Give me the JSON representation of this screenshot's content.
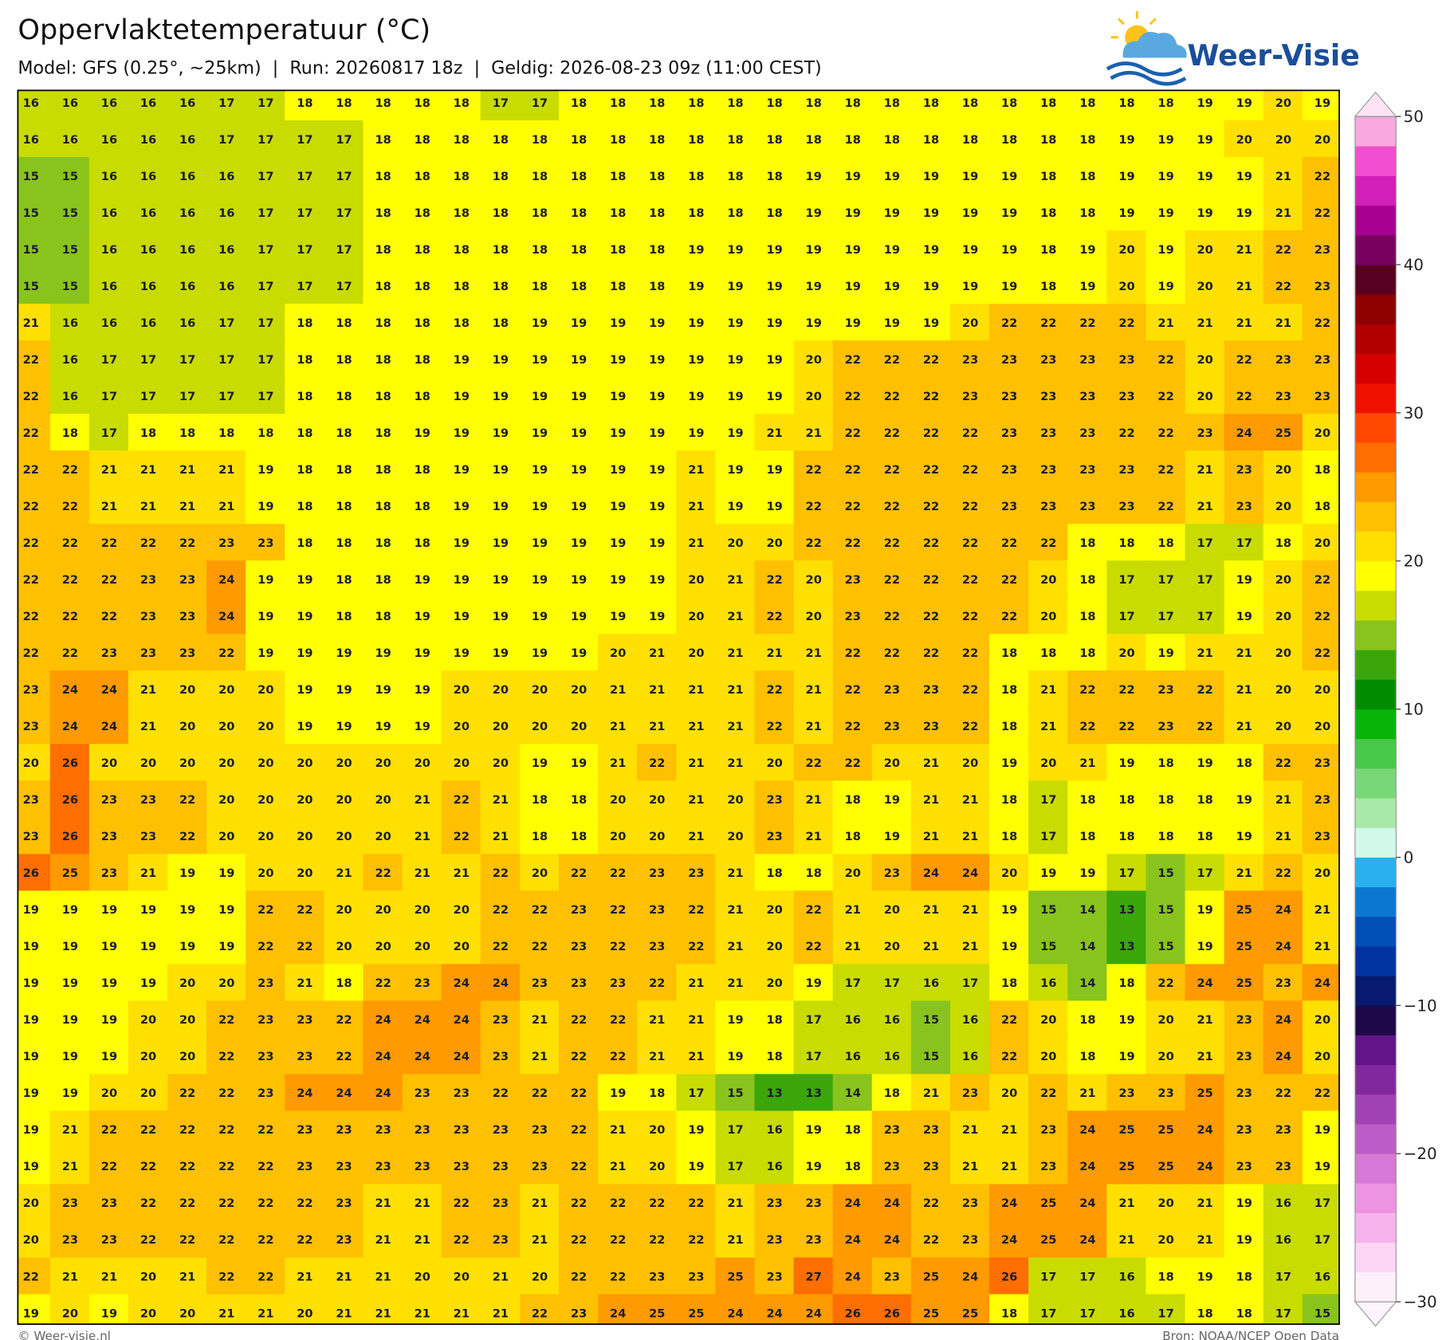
{
  "header": {
    "title": "Oppervlaktetemperatuur (°C)",
    "subtitle": "Model: GFS (0.25°, ~25km)  |  Run: 20260817 18z  |  Geldig: 2026-08-23 09z (11:00 CEST)"
  },
  "logo": {
    "text": "Weer-Visie"
  },
  "map": {
    "rows": [
      [
        16,
        16,
        16,
        16,
        16,
        17,
        17,
        18,
        18,
        18,
        18,
        18,
        17,
        17,
        18,
        18,
        18,
        18,
        18,
        18,
        18,
        18,
        18,
        18,
        18,
        18,
        18,
        18,
        18,
        18,
        19,
        19,
        20,
        19
      ],
      [
        16,
        16,
        16,
        16,
        16,
        17,
        17,
        17,
        17,
        18,
        18,
        18,
        18,
        18,
        18,
        18,
        18,
        18,
        18,
        18,
        18,
        18,
        18,
        18,
        18,
        18,
        18,
        18,
        19,
        19,
        19,
        20,
        20,
        20
      ],
      [
        15,
        15,
        16,
        16,
        16,
        16,
        17,
        17,
        17,
        18,
        18,
        18,
        18,
        18,
        18,
        18,
        18,
        18,
        18,
        18,
        19,
        19,
        19,
        19,
        19,
        19,
        18,
        18,
        19,
        19,
        19,
        19,
        21,
        22
      ],
      [
        15,
        15,
        16,
        16,
        16,
        16,
        17,
        17,
        17,
        18,
        18,
        18,
        18,
        18,
        18,
        18,
        18,
        18,
        18,
        18,
        19,
        19,
        19,
        19,
        19,
        19,
        18,
        18,
        19,
        19,
        19,
        19,
        21,
        22
      ],
      [
        15,
        15,
        16,
        16,
        16,
        16,
        17,
        17,
        17,
        18,
        18,
        18,
        18,
        18,
        18,
        18,
        18,
        19,
        19,
        19,
        19,
        19,
        19,
        19,
        19,
        19,
        18,
        19,
        20,
        19,
        20,
        21,
        22,
        23
      ],
      [
        15,
        15,
        16,
        16,
        16,
        16,
        17,
        17,
        17,
        18,
        18,
        18,
        18,
        18,
        18,
        18,
        18,
        19,
        19,
        19,
        19,
        19,
        19,
        19,
        19,
        19,
        18,
        19,
        20,
        19,
        20,
        21,
        22,
        23
      ],
      [
        21,
        16,
        16,
        16,
        16,
        17,
        17,
        18,
        18,
        18,
        18,
        18,
        18,
        19,
        19,
        19,
        19,
        19,
        19,
        19,
        19,
        19,
        19,
        19,
        20,
        22,
        22,
        22,
        22,
        21,
        21,
        21,
        21,
        22
      ],
      [
        22,
        16,
        17,
        17,
        17,
        17,
        17,
        18,
        18,
        18,
        18,
        19,
        19,
        19,
        19,
        19,
        19,
        19,
        19,
        19,
        20,
        22,
        22,
        22,
        23,
        23,
        23,
        23,
        23,
        22,
        20,
        22,
        23,
        23
      ],
      [
        22,
        16,
        17,
        17,
        17,
        17,
        17,
        18,
        18,
        18,
        18,
        19,
        19,
        19,
        19,
        19,
        19,
        19,
        19,
        19,
        20,
        22,
        22,
        22,
        23,
        23,
        23,
        23,
        23,
        22,
        20,
        22,
        23,
        23
      ],
      [
        22,
        18,
        17,
        18,
        18,
        18,
        18,
        18,
        18,
        18,
        19,
        19,
        19,
        19,
        19,
        19,
        19,
        19,
        19,
        21,
        21,
        22,
        22,
        22,
        22,
        23,
        23,
        23,
        22,
        22,
        23,
        24,
        25,
        20
      ],
      [
        22,
        22,
        21,
        21,
        21,
        21,
        19,
        18,
        18,
        18,
        18,
        19,
        19,
        19,
        19,
        19,
        19,
        21,
        19,
        19,
        22,
        22,
        22,
        22,
        22,
        23,
        23,
        23,
        23,
        22,
        21,
        23,
        20,
        18
      ],
      [
        22,
        22,
        21,
        21,
        21,
        21,
        19,
        18,
        18,
        18,
        18,
        19,
        19,
        19,
        19,
        19,
        19,
        21,
        19,
        19,
        22,
        22,
        22,
        22,
        22,
        23,
        23,
        23,
        23,
        22,
        21,
        23,
        20,
        18
      ],
      [
        22,
        22,
        22,
        22,
        22,
        23,
        23,
        18,
        18,
        18,
        18,
        19,
        19,
        19,
        19,
        19,
        19,
        21,
        20,
        20,
        22,
        22,
        22,
        22,
        22,
        22,
        22,
        18,
        18,
        18,
        17,
        17,
        18,
        20
      ],
      [
        22,
        22,
        22,
        23,
        23,
        24,
        19,
        19,
        18,
        18,
        19,
        19,
        19,
        19,
        19,
        19,
        19,
        20,
        21,
        22,
        20,
        23,
        22,
        22,
        22,
        22,
        20,
        18,
        17,
        17,
        17,
        19,
        20,
        22
      ],
      [
        22,
        22,
        22,
        23,
        23,
        24,
        19,
        19,
        18,
        18,
        19,
        19,
        19,
        19,
        19,
        19,
        19,
        20,
        21,
        22,
        20,
        23,
        22,
        22,
        22,
        22,
        20,
        18,
        17,
        17,
        17,
        19,
        20,
        22
      ],
      [
        22,
        22,
        23,
        23,
        23,
        22,
        19,
        19,
        19,
        19,
        19,
        19,
        19,
        19,
        19,
        20,
        21,
        20,
        21,
        21,
        21,
        22,
        22,
        22,
        22,
        18,
        18,
        18,
        20,
        19,
        21,
        21,
        20,
        22
      ],
      [
        23,
        24,
        24,
        21,
        20,
        20,
        20,
        19,
        19,
        19,
        19,
        20,
        20,
        20,
        20,
        21,
        21,
        21,
        21,
        22,
        21,
        22,
        23,
        23,
        22,
        18,
        21,
        22,
        22,
        23,
        22,
        21,
        20,
        20
      ],
      [
        23,
        24,
        24,
        21,
        20,
        20,
        20,
        19,
        19,
        19,
        19,
        20,
        20,
        20,
        20,
        21,
        21,
        21,
        21,
        22,
        21,
        22,
        23,
        23,
        22,
        18,
        21,
        22,
        22,
        23,
        22,
        21,
        20,
        20
      ],
      [
        20,
        26,
        20,
        20,
        20,
        20,
        20,
        20,
        20,
        20,
        20,
        20,
        20,
        19,
        19,
        21,
        22,
        21,
        21,
        20,
        22,
        22,
        20,
        21,
        20,
        19,
        20,
        21,
        19,
        18,
        19,
        18,
        22,
        23
      ],
      [
        23,
        26,
        23,
        23,
        22,
        20,
        20,
        20,
        20,
        20,
        21,
        22,
        21,
        18,
        18,
        20,
        20,
        21,
        20,
        23,
        21,
        18,
        19,
        21,
        21,
        18,
        17,
        18,
        18,
        18,
        18,
        19,
        21,
        23
      ],
      [
        23,
        26,
        23,
        23,
        22,
        20,
        20,
        20,
        20,
        20,
        21,
        22,
        21,
        18,
        18,
        20,
        20,
        21,
        20,
        23,
        21,
        18,
        19,
        21,
        21,
        18,
        17,
        18,
        18,
        18,
        18,
        19,
        21,
        23
      ],
      [
        26,
        25,
        23,
        21,
        19,
        19,
        20,
        20,
        21,
        22,
        21,
        21,
        22,
        20,
        22,
        22,
        23,
        23,
        21,
        18,
        18,
        20,
        23,
        24,
        24,
        20,
        19,
        19,
        17,
        15,
        17,
        21,
        22,
        20
      ],
      [
        19,
        19,
        19,
        19,
        19,
        19,
        22,
        22,
        20,
        20,
        20,
        20,
        22,
        22,
        23,
        22,
        23,
        22,
        21,
        20,
        22,
        21,
        20,
        21,
        21,
        19,
        15,
        14,
        13,
        15,
        19,
        25,
        24,
        21
      ],
      [
        19,
        19,
        19,
        19,
        19,
        19,
        22,
        22,
        20,
        20,
        20,
        20,
        22,
        22,
        23,
        22,
        23,
        22,
        21,
        20,
        22,
        21,
        20,
        21,
        21,
        19,
        15,
        14,
        13,
        15,
        19,
        25,
        24,
        21
      ],
      [
        19,
        19,
        19,
        19,
        20,
        20,
        23,
        21,
        18,
        22,
        23,
        24,
        24,
        23,
        23,
        23,
        22,
        21,
        21,
        20,
        19,
        17,
        17,
        16,
        17,
        18,
        16,
        14,
        18,
        22,
        24,
        25,
        23,
        24
      ],
      [
        19,
        19,
        19,
        20,
        20,
        22,
        23,
        23,
        22,
        24,
        24,
        24,
        23,
        21,
        22,
        22,
        21,
        21,
        19,
        18,
        17,
        16,
        16,
        15,
        16,
        22,
        20,
        18,
        19,
        20,
        21,
        23,
        24,
        20
      ],
      [
        19,
        19,
        19,
        20,
        20,
        22,
        23,
        23,
        22,
        24,
        24,
        24,
        23,
        21,
        22,
        22,
        21,
        21,
        19,
        18,
        17,
        16,
        16,
        15,
        16,
        22,
        20,
        18,
        19,
        20,
        21,
        23,
        24,
        20
      ],
      [
        19,
        19,
        20,
        20,
        22,
        22,
        23,
        24,
        24,
        24,
        23,
        23,
        22,
        22,
        22,
        19,
        18,
        17,
        15,
        13,
        13,
        14,
        18,
        21,
        23,
        20,
        22,
        21,
        23,
        23,
        25,
        23,
        22,
        22
      ],
      [
        19,
        21,
        22,
        22,
        22,
        22,
        22,
        23,
        23,
        23,
        23,
        23,
        23,
        23,
        22,
        21,
        20,
        19,
        17,
        16,
        19,
        18,
        23,
        23,
        21,
        21,
        23,
        24,
        25,
        25,
        24,
        23,
        23,
        19
      ],
      [
        19,
        21,
        22,
        22,
        22,
        22,
        22,
        23,
        23,
        23,
        23,
        23,
        23,
        23,
        22,
        21,
        20,
        19,
        17,
        16,
        19,
        18,
        23,
        23,
        21,
        21,
        23,
        24,
        25,
        25,
        24,
        23,
        23,
        19
      ],
      [
        20,
        23,
        23,
        22,
        22,
        22,
        22,
        22,
        23,
        21,
        21,
        22,
        23,
        21,
        22,
        22,
        22,
        22,
        21,
        23,
        23,
        24,
        24,
        22,
        23,
        24,
        25,
        24,
        21,
        20,
        21,
        19,
        16,
        17
      ],
      [
        20,
        23,
        23,
        22,
        22,
        22,
        22,
        22,
        23,
        21,
        21,
        22,
        23,
        21,
        22,
        22,
        22,
        22,
        21,
        23,
        23,
        24,
        24,
        22,
        23,
        24,
        25,
        24,
        21,
        20,
        21,
        19,
        16,
        17
      ],
      [
        22,
        21,
        21,
        20,
        21,
        22,
        22,
        21,
        21,
        21,
        20,
        20,
        21,
        20,
        22,
        22,
        23,
        23,
        25,
        23,
        27,
        24,
        23,
        25,
        24,
        26,
        17,
        17,
        16,
        18,
        19,
        18,
        17,
        16
      ],
      [
        19,
        20,
        19,
        20,
        20,
        21,
        21,
        20,
        21,
        21,
        21,
        21,
        21,
        22,
        23,
        24,
        25,
        25,
        24,
        24,
        24,
        26,
        26,
        25,
        25,
        18,
        17,
        17,
        16,
        17,
        18,
        18,
        17,
        15
      ]
    ]
  },
  "colorbar": {
    "lim": [
      -30,
      50
    ],
    "ticks": [
      {
        "value": -30,
        "label": "−30"
      },
      {
        "value": -20,
        "label": "−20"
      },
      {
        "value": -10,
        "label": "−10"
      },
      0,
      10,
      20,
      30,
      40,
      50
    ],
    "colors": [
      "#fdf0fb",
      "#fcd6f4",
      "#f7b4ec",
      "#ec94e2",
      "#d678d6",
      "#bc5cc6",
      "#a042b4",
      "#82289e",
      "#621488",
      "#1e0848",
      "#061a70",
      "#0032a0",
      "#0050b8",
      "#0a78d0",
      "#2ab0ee",
      "#d2f8e8",
      "#a8e8a8",
      "#78d878",
      "#48c848",
      "#08b408",
      "#008c00",
      "#3aa60a",
      "#88c41c",
      "#c8dc00",
      "#ffff00",
      "#ffe000",
      "#ffc000",
      "#ff9a00",
      "#ff6e00",
      "#ff4800",
      "#f01000",
      "#d40000",
      "#b00000",
      "#8c0000",
      "#580020",
      "#7a0060",
      "#a80090",
      "#d020b8",
      "#f050d0",
      "#f8a8dc"
    ],
    "under_color": "#fdf4fc",
    "over_color": "#fde4f4"
  },
  "footer": {
    "left": "© Weer-visie.nl",
    "right": "Bron: NOAA/NCEP Open Data"
  }
}
